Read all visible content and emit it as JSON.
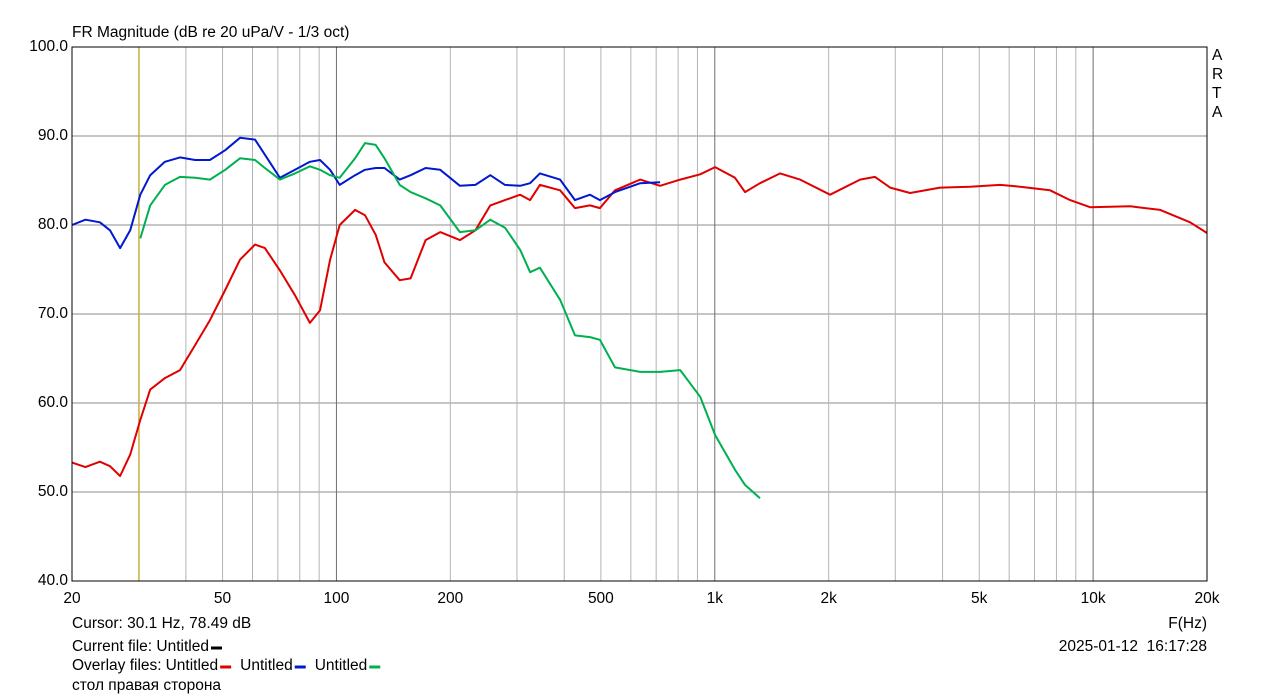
{
  "chart_data": {
    "type": "line",
    "title": "FR Magnitude (dB re 20 uPa/V - 1/3 oct)",
    "watermark": "ARTA",
    "x_label": "F(Hz)",
    "log_x": true,
    "grid": true,
    "xlim": [
      20,
      20000
    ],
    "ylim": [
      40,
      100
    ],
    "xticks": [
      20,
      50,
      100,
      200,
      500,
      {
        "value": 1000,
        "label": "1k"
      },
      {
        "value": 2000,
        "label": "2k"
      },
      {
        "value": 5000,
        "label": "5k"
      },
      {
        "value": 10000,
        "label": "10k"
      },
      {
        "value": 20000,
        "label": "20k"
      }
    ],
    "xminor": [
      30,
      40,
      60,
      70,
      80,
      90,
      300,
      400,
      600,
      700,
      800,
      900,
      3000,
      4000,
      6000,
      7000,
      8000,
      9000
    ],
    "yticks": [
      {
        "value": 40,
        "label": "40.0"
      },
      {
        "value": 50,
        "label": "50.0"
      },
      {
        "value": 60,
        "label": "60.0"
      },
      {
        "value": 70,
        "label": "70.0"
      },
      {
        "value": 80,
        "label": "80.0"
      },
      {
        "value": 90,
        "label": "90.0"
      },
      {
        "value": 100,
        "label": "100.0"
      }
    ],
    "cursor": {
      "label": "Cursor: 30.1 Hz, 78.49 dB",
      "x": 30.1,
      "color": "#d4b000"
    },
    "current_file": "Current file: Untitled",
    "overlay_label": "Overlay files:",
    "timestamp": "2025-01-12  16:17:28",
    "note": "стол правая сторона",
    "x": [
      20,
      21.7,
      23.7,
      25.2,
      26.8,
      28.5,
      30.3,
      32.2,
      35.2,
      38.6,
      42.3,
      46.3,
      50.8,
      55.6,
      60.9,
      64.7,
      70.9,
      77.7,
      85.1,
      90.5,
      96.2,
      102,
      112,
      119,
      127,
      134,
      147,
      157,
      172,
      188,
      212,
      233,
      255,
      279,
      306,
      325,
      345,
      390,
      427,
      468,
      497,
      545,
      635,
      717,
      810,
      915,
      1002,
      1131,
      1202,
      1317,
      1488,
      1681,
      2017,
      2421,
      2652,
      2906,
      3283,
      3940,
      4729,
      5676,
      6413,
      7696,
      8692,
      9820,
      12530,
      15040,
      18050,
      20000
    ],
    "series": [
      {
        "name": "Untitled",
        "color": "#e00000",
        "values": [
          53.3,
          52.8,
          53.4,
          52.9,
          51.8,
          54.2,
          58.1,
          61.5,
          62.8,
          63.7,
          66.5,
          69.3,
          72.7,
          76.1,
          77.8,
          77.4,
          74.9,
          72.1,
          69.0,
          70.4,
          76.1,
          80.0,
          81.7,
          81.1,
          78.9,
          75.8,
          73.8,
          74.0,
          78.3,
          79.2,
          78.3,
          79.4,
          82.2,
          82.8,
          83.4,
          82.8,
          84.5,
          83.9,
          81.9,
          82.2,
          81.9,
          83.9,
          85.1,
          84.4,
          85.1,
          85.7,
          86.5,
          85.3,
          83.7,
          84.7,
          85.8,
          85.1,
          83.4,
          85.1,
          85.4,
          84.2,
          83.6,
          84.2,
          84.3,
          84.5,
          84.3,
          83.9,
          82.8,
          82.0,
          82.1,
          81.7,
          80.3,
          79.1
        ]
      },
      {
        "name": "Untitled",
        "color": "#0018d0",
        "values": [
          80.0,
          80.6,
          80.3,
          79.4,
          77.4,
          79.4,
          83.4,
          85.6,
          87.1,
          87.6,
          87.3,
          87.3,
          88.4,
          89.8,
          89.6,
          87.9,
          85.3,
          86.2,
          87.1,
          87.3,
          86.2,
          84.5,
          85.6,
          86.2,
          86.4,
          86.4,
          85.1,
          85.6,
          86.4,
          86.2,
          84.4,
          84.5,
          85.6,
          84.5,
          84.4,
          84.7,
          85.8,
          85.1,
          82.8,
          83.4,
          82.8,
          83.7,
          84.7,
          84.8,
          null,
          null,
          null,
          null,
          null,
          null,
          null,
          null,
          null,
          null,
          null,
          null,
          null,
          null,
          null,
          null,
          null,
          null,
          null,
          null,
          null,
          null,
          null,
          null
        ]
      },
      {
        "name": "Untitled",
        "color": "#00b050",
        "values": [
          null,
          null,
          null,
          null,
          null,
          null,
          78.5,
          82.2,
          84.5,
          85.4,
          85.3,
          85.1,
          86.2,
          87.5,
          87.3,
          86.4,
          85.1,
          85.8,
          86.6,
          86.2,
          85.6,
          85.3,
          87.5,
          89.2,
          89.0,
          87.5,
          84.5,
          83.7,
          83.0,
          82.2,
          79.2,
          79.4,
          80.6,
          79.7,
          77.2,
          74.7,
          75.2,
          71.6,
          67.6,
          67.4,
          67.1,
          64.0,
          63.5,
          63.5,
          63.7,
          60.7,
          56.4,
          52.5,
          50.8,
          49.3,
          null,
          null,
          null,
          null,
          null,
          null,
          null,
          null,
          null,
          null,
          null,
          null,
          null,
          null,
          null,
          null,
          null,
          null
        ]
      }
    ]
  }
}
